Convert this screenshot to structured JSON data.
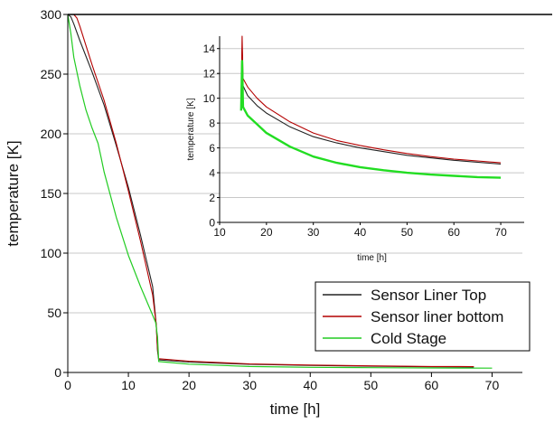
{
  "chart_data": [
    {
      "type": "line",
      "title": "",
      "xlabel": "time [h]",
      "ylabel": "temperature [K]",
      "xlim": [
        0,
        75
      ],
      "ylim": [
        0,
        300
      ],
      "xticks": [
        0,
        10,
        20,
        30,
        40,
        50,
        60,
        70
      ],
      "yticks": [
        0,
        50,
        100,
        150,
        200,
        250,
        300
      ],
      "grid": "horizontal",
      "legend_position": "bottom-right",
      "series": [
        {
          "name": "Sensor Liner Top",
          "color": "#222222",
          "x": [
            0,
            0.5,
            1.0,
            2.0,
            4.0,
            6.0,
            8.0,
            10.0,
            12.0,
            14.0,
            14.6,
            14.8,
            15.0,
            20,
            30,
            40,
            50,
            60,
            67
          ],
          "y": [
            300,
            298,
            292,
            278,
            252,
            224,
            190,
            155,
            115,
            72,
            40,
            18,
            10.5,
            8.7,
            6.8,
            5.9,
            5.2,
            4.8,
            4.6
          ]
        },
        {
          "name": "Sensor liner bottom",
          "color": "#b40000",
          "x": [
            1.0,
            1.5,
            2.0,
            4.0,
            6.0,
            8.0,
            10.0,
            12.0,
            14.0,
            14.6,
            14.8,
            15.0,
            20,
            30,
            40,
            50,
            60,
            67
          ],
          "y": [
            300,
            297,
            290,
            258,
            228,
            192,
            152,
            110,
            65,
            40,
            20,
            11.5,
            9.5,
            7.2,
            6.2,
            5.5,
            5.0,
            4.9
          ]
        },
        {
          "name": "Cold Stage",
          "color": "#22cc22",
          "x": [
            0,
            0.5,
            1.0,
            2.0,
            3.0,
            4.0,
            5.0,
            5.5,
            6.0,
            8.0,
            10.0,
            12.0,
            14.0,
            14.5,
            14.8,
            15.0,
            20,
            30,
            40,
            50,
            60,
            70
          ],
          "y": [
            300,
            284,
            264,
            240,
            220,
            205,
            192,
            180,
            168,
            130,
            98,
            72,
            48,
            42,
            30,
            9.2,
            7.0,
            5.0,
            4.3,
            4.0,
            3.8,
            3.6
          ]
        }
      ]
    },
    {
      "type": "line",
      "title": "",
      "xlabel": "time [h]",
      "ylabel": "temperature [K]",
      "xlim": [
        10,
        75
      ],
      "ylim": [
        0,
        15
      ],
      "xticks": [
        10,
        20,
        30,
        40,
        50,
        60,
        70
      ],
      "yticks": [
        0,
        2,
        4,
        6,
        8,
        10,
        12,
        14
      ],
      "grid": "horizontal",
      "series": [
        {
          "name": "Sensor Liner Top",
          "color": "#222222",
          "x": [
            14.6,
            14.8,
            15,
            16,
            18,
            20,
            25,
            30,
            35,
            40,
            45,
            50,
            55,
            60,
            65,
            70
          ],
          "y": [
            10,
            14,
            11,
            10.2,
            9.4,
            8.8,
            7.7,
            6.9,
            6.4,
            6.0,
            5.7,
            5.4,
            5.2,
            5.0,
            4.85,
            4.7
          ]
        },
        {
          "name": "Sensor liner bottom",
          "color": "#b40000",
          "x": [
            14.6,
            14.8,
            15,
            16,
            18,
            20,
            25,
            30,
            35,
            40,
            45,
            50,
            55,
            60,
            65,
            70
          ],
          "y": [
            10,
            15,
            11.6,
            10.9,
            10.0,
            9.3,
            8.1,
            7.2,
            6.6,
            6.2,
            5.85,
            5.55,
            5.3,
            5.1,
            4.95,
            4.8
          ]
        },
        {
          "name": "Cold Stage",
          "color": "#22dd22",
          "x": [
            14.6,
            14.8,
            15,
            16,
            18,
            20,
            25,
            30,
            35,
            40,
            45,
            50,
            55,
            60,
            65,
            70
          ],
          "y": [
            9,
            13,
            9.3,
            8.6,
            7.9,
            7.2,
            6.1,
            5.3,
            4.8,
            4.45,
            4.2,
            4.0,
            3.85,
            3.75,
            3.65,
            3.6
          ]
        }
      ]
    }
  ]
}
